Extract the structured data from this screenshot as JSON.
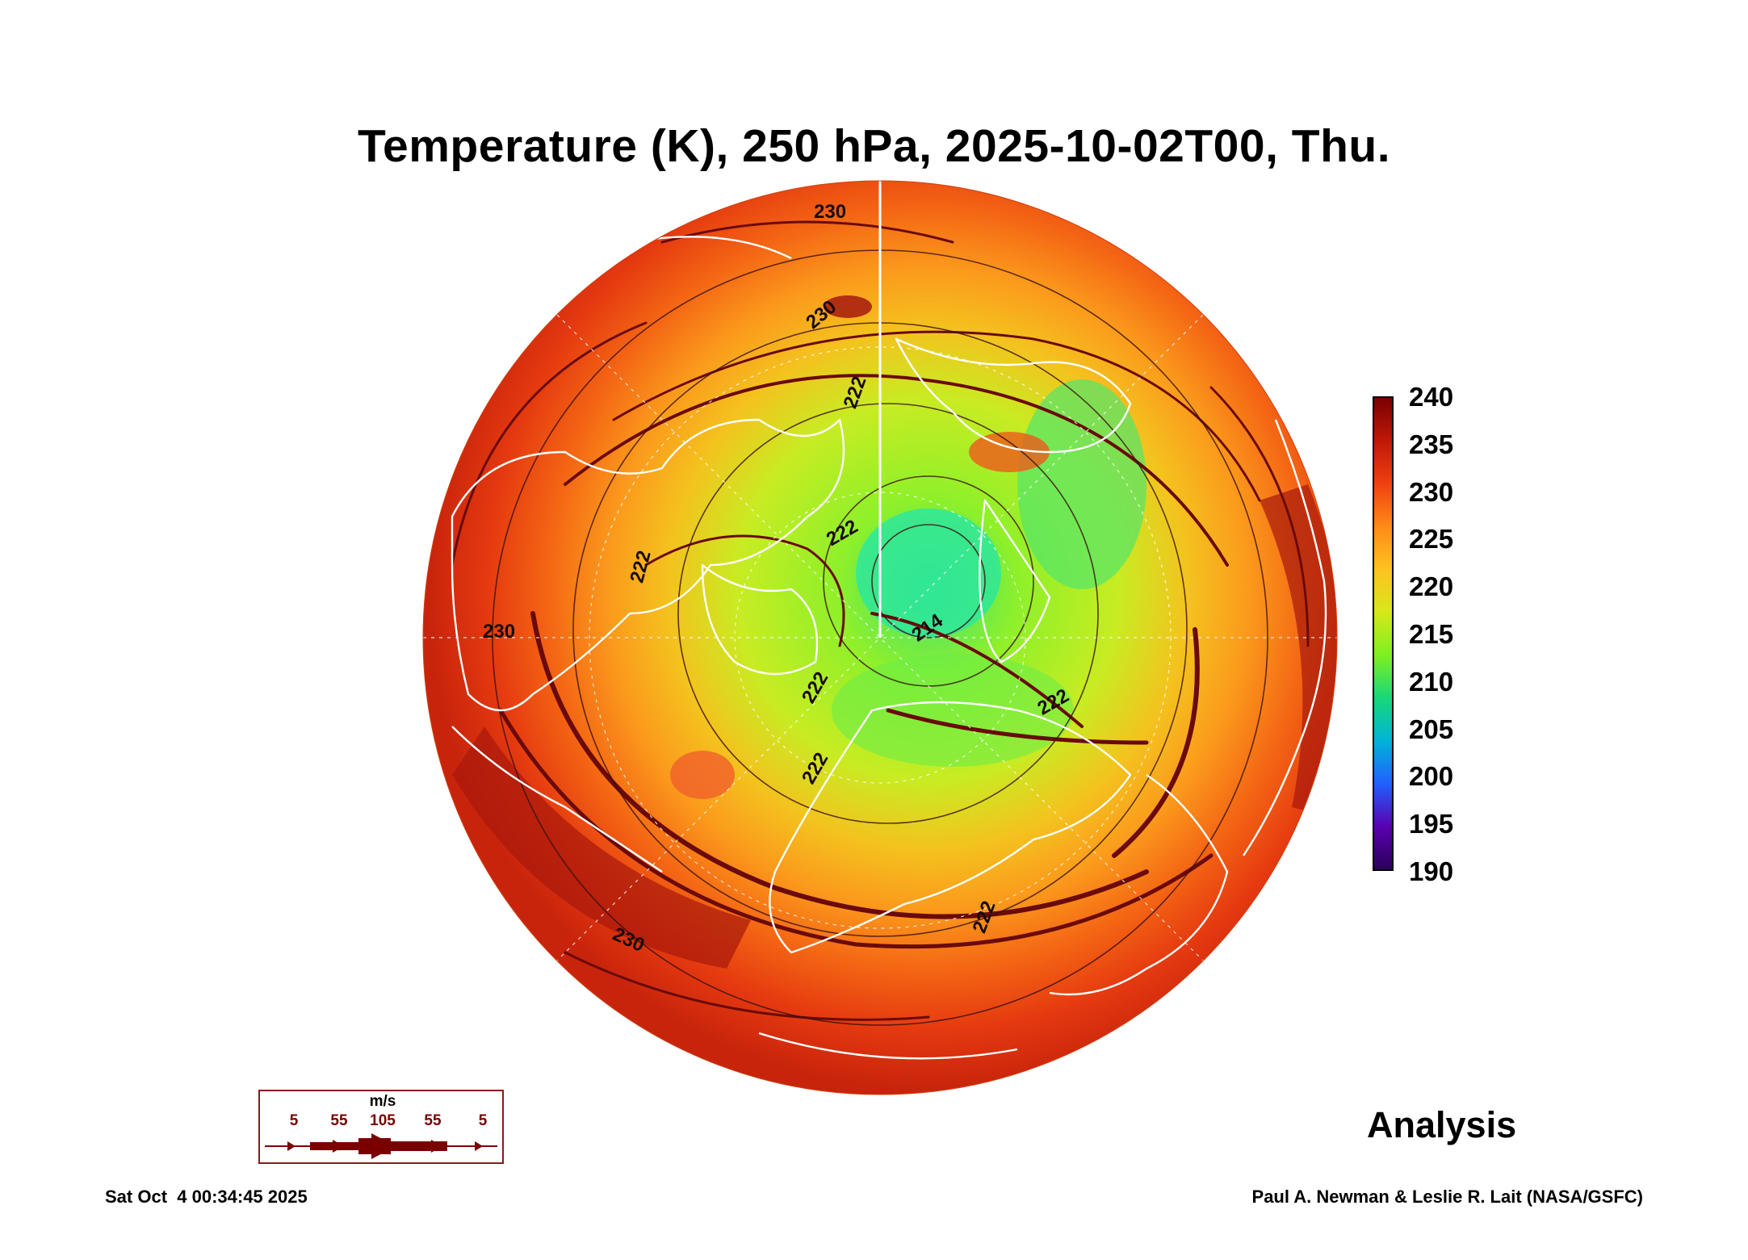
{
  "title": "Temperature (K), 250 hPa, 2025-10-02T00, Thu.",
  "colorbar": {
    "labels": [
      "240",
      "235",
      "230",
      "225",
      "220",
      "215",
      "210",
      "205",
      "200",
      "195",
      "190"
    ],
    "min": 190,
    "max": 240,
    "colors": [
      "#2a0058",
      "#5a00b0",
      "#2060ff",
      "#00b4d8",
      "#18d878",
      "#7ef020",
      "#d6e81a",
      "#ffc21e",
      "#ff8a18",
      "#f04010",
      "#c01808",
      "#7a0000"
    ]
  },
  "contour_labels": {
    "c230_top": "230",
    "c230_topleft": "230",
    "c222_a": "222",
    "c222_b": "222",
    "c214": "214",
    "c222_left": "222",
    "c230_left": "230",
    "c222_c": "222",
    "c222_d": "222",
    "c222_right": "222",
    "c222_bottom": "222",
    "c230_bottom": "230"
  },
  "wind_legend": {
    "unit": "m/s",
    "labels": [
      "5",
      "55",
      "105",
      "55",
      "5"
    ]
  },
  "analysis_label": "Analysis",
  "timestamp": "Sat Oct  4 00:34:45 2025",
  "credit": "Paul A. Newman & Leslie R. Lait (NASA/GSFC)"
}
